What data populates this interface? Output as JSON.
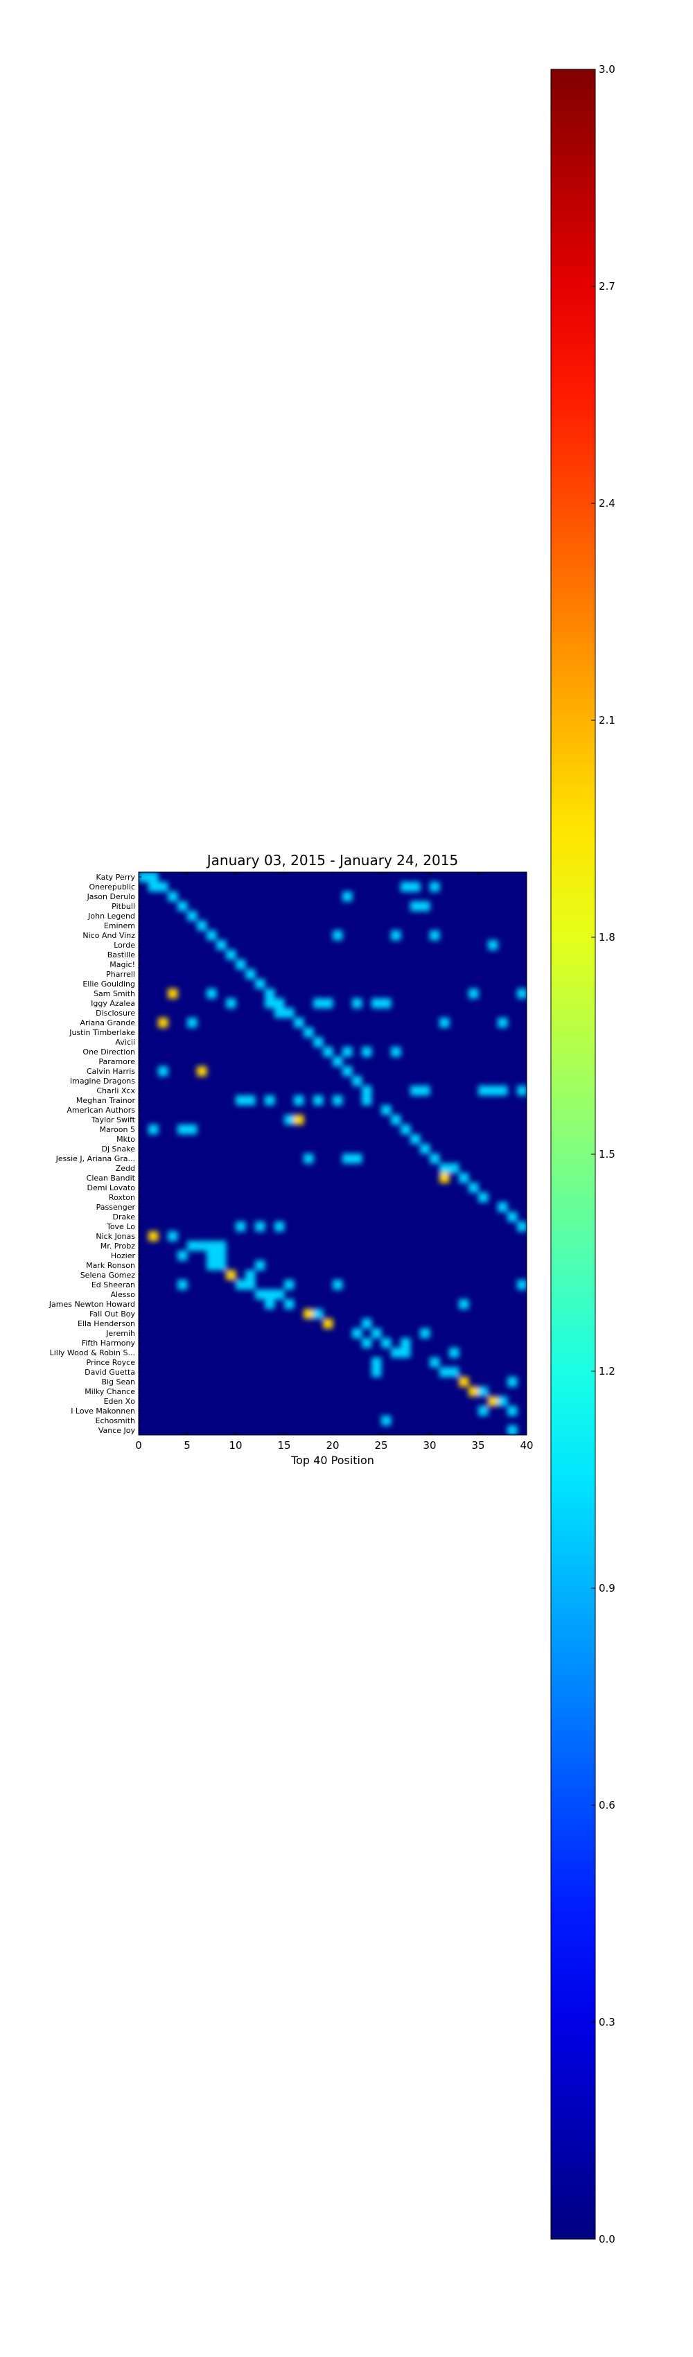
{
  "chart_data": {
    "type": "heatmap",
    "title": "January 03, 2015 - January 24, 2015",
    "xlabel": "Top 40 Position",
    "ylabel": "",
    "xlim": [
      0,
      40
    ],
    "xticks": [
      "0",
      "5",
      "10",
      "15",
      "20",
      "25",
      "30",
      "35",
      "40"
    ],
    "artists": [
      "Katy Perry",
      "Onerepublic",
      "Jason Derulo",
      "Pitbull",
      "John Legend",
      "Eminem",
      "Nico And Vinz",
      "Lorde",
      "Bastille",
      "Magic!",
      "Pharrell",
      "Ellie Goulding",
      "Sam Smith",
      "Iggy Azalea",
      "Disclosure",
      "Ariana Grande",
      "Justin Timberlake",
      "Avicii",
      "One Direction",
      "Paramore",
      "Calvin Harris",
      "Imagine Dragons",
      "Charli Xcx",
      "Meghan Trainor",
      "American Authors",
      "Taylor Swift",
      "Maroon 5",
      "Mkto",
      "Dj Snake",
      "Jessie J, Ariana Gra...",
      "Zedd",
      "Clean Bandit",
      "Demi Lovato",
      "Roxton",
      "Passenger",
      "Drake",
      "Tove Lo",
      "Nick Jonas",
      "Mr. Probz",
      "Hozier",
      "Mark Ronson",
      "Selena Gomez",
      "Ed Sheeran",
      "Alesso",
      "James Newton Howard",
      "Fall Out Boy",
      "Ella Henderson",
      "Jeremih",
      "Fifth Harmony",
      "Lilly Wood & Robin S...",
      "Prince Royce",
      "David Guetta",
      "Big Sean",
      "Milky Chance",
      "Eden Xo",
      "I Love Makonnen",
      "Echosmith",
      "Vance Joy"
    ],
    "value_range": [
      0,
      3.0
    ],
    "colormap": "jet",
    "colorbar_ticks": [
      "0.0",
      "0.3",
      "0.6",
      "0.9",
      "1.2",
      "1.5",
      "1.8",
      "2.1",
      "2.4",
      "2.7",
      "3.0"
    ],
    "background_value": 0,
    "cells": [
      [
        0,
        0,
        1
      ],
      [
        0,
        1,
        1
      ],
      [
        1,
        1,
        1
      ],
      [
        1,
        2,
        1
      ],
      [
        1,
        27,
        1
      ],
      [
        1,
        28,
        1
      ],
      [
        1,
        30,
        1
      ],
      [
        2,
        3,
        1
      ],
      [
        2,
        21,
        1
      ],
      [
        3,
        4,
        1
      ],
      [
        3,
        28,
        1
      ],
      [
        3,
        29,
        1
      ],
      [
        4,
        5,
        1
      ],
      [
        5,
        6,
        1
      ],
      [
        6,
        7,
        1
      ],
      [
        6,
        20,
        1
      ],
      [
        6,
        26,
        1
      ],
      [
        6,
        30,
        1
      ],
      [
        7,
        8,
        1
      ],
      [
        7,
        36,
        1
      ],
      [
        8,
        9,
        1
      ],
      [
        9,
        10,
        1
      ],
      [
        10,
        11,
        1
      ],
      [
        11,
        12,
        1
      ],
      [
        12,
        3,
        2
      ],
      [
        12,
        7,
        1
      ],
      [
        12,
        13,
        1
      ],
      [
        12,
        34,
        1
      ],
      [
        12,
        39,
        1
      ],
      [
        13,
        9,
        1
      ],
      [
        13,
        13,
        1
      ],
      [
        13,
        14,
        1
      ],
      [
        13,
        18,
        1
      ],
      [
        13,
        19,
        1
      ],
      [
        13,
        22,
        1
      ],
      [
        13,
        24,
        1
      ],
      [
        13,
        25,
        1
      ],
      [
        14,
        14,
        1
      ],
      [
        14,
        15,
        1
      ],
      [
        15,
        2,
        2
      ],
      [
        15,
        5,
        1
      ],
      [
        15,
        16,
        1
      ],
      [
        15,
        31,
        1
      ],
      [
        15,
        37,
        1
      ],
      [
        16,
        17,
        1
      ],
      [
        17,
        18,
        1
      ],
      [
        18,
        19,
        1
      ],
      [
        18,
        21,
        1
      ],
      [
        18,
        23,
        1
      ],
      [
        18,
        26,
        1
      ],
      [
        19,
        20,
        1
      ],
      [
        20,
        2,
        1
      ],
      [
        20,
        6,
        2
      ],
      [
        20,
        21,
        1
      ],
      [
        21,
        22,
        1
      ],
      [
        22,
        23,
        1
      ],
      [
        22,
        28,
        1
      ],
      [
        22,
        29,
        1
      ],
      [
        22,
        35,
        1
      ],
      [
        22,
        36,
        1
      ],
      [
        22,
        37,
        1
      ],
      [
        22,
        39,
        1
      ],
      [
        23,
        10,
        1
      ],
      [
        23,
        11,
        1
      ],
      [
        23,
        13,
        1
      ],
      [
        23,
        16,
        1
      ],
      [
        23,
        18,
        1
      ],
      [
        23,
        20,
        1
      ],
      [
        23,
        23,
        1
      ],
      [
        24,
        25,
        1
      ],
      [
        25,
        15,
        1
      ],
      [
        25,
        16,
        2
      ],
      [
        25,
        26,
        1
      ],
      [
        26,
        1,
        1
      ],
      [
        26,
        4,
        1
      ],
      [
        26,
        5,
        1
      ],
      [
        26,
        27,
        1
      ],
      [
        27,
        28,
        1
      ],
      [
        28,
        29,
        1
      ],
      [
        29,
        17,
        1
      ],
      [
        29,
        21,
        1
      ],
      [
        29,
        22,
        1
      ],
      [
        29,
        30,
        1
      ],
      [
        30,
        31,
        1
      ],
      [
        30,
        32,
        1
      ],
      [
        31,
        31,
        2
      ],
      [
        31,
        33,
        1
      ],
      [
        32,
        34,
        1
      ],
      [
        33,
        35,
        1
      ],
      [
        34,
        37,
        1
      ],
      [
        35,
        38,
        1
      ],
      [
        36,
        10,
        1
      ],
      [
        36,
        12,
        1
      ],
      [
        36,
        14,
        1
      ],
      [
        36,
        39,
        1
      ],
      [
        37,
        1,
        2
      ],
      [
        37,
        3,
        1
      ],
      [
        38,
        5,
        1
      ],
      [
        38,
        6,
        1
      ],
      [
        38,
        7,
        1
      ],
      [
        38,
        8,
        1
      ],
      [
        39,
        4,
        1
      ],
      [
        39,
        7,
        1
      ],
      [
        39,
        8,
        1
      ],
      [
        40,
        7,
        1
      ],
      [
        40,
        8,
        1
      ],
      [
        40,
        12,
        1
      ],
      [
        41,
        9,
        2
      ],
      [
        41,
        11,
        1
      ],
      [
        42,
        4,
        1
      ],
      [
        42,
        10,
        1
      ],
      [
        42,
        11,
        1
      ],
      [
        42,
        15,
        1
      ],
      [
        42,
        20,
        1
      ],
      [
        42,
        39,
        1
      ],
      [
        43,
        12,
        1
      ],
      [
        43,
        13,
        1
      ],
      [
        43,
        14,
        1
      ],
      [
        44,
        13,
        1
      ],
      [
        44,
        15,
        1
      ],
      [
        44,
        33,
        1
      ],
      [
        45,
        17,
        2
      ],
      [
        45,
        18,
        1
      ],
      [
        46,
        19,
        2
      ],
      [
        46,
        23,
        1
      ],
      [
        47,
        22,
        1
      ],
      [
        47,
        24,
        1
      ],
      [
        47,
        29,
        1
      ],
      [
        48,
        23,
        1
      ],
      [
        48,
        25,
        1
      ],
      [
        48,
        27,
        1
      ],
      [
        49,
        26,
        1
      ],
      [
        49,
        27,
        1
      ],
      [
        49,
        32,
        1
      ],
      [
        50,
        24,
        1
      ],
      [
        50,
        30,
        1
      ],
      [
        51,
        24,
        1
      ],
      [
        51,
        31,
        1
      ],
      [
        51,
        32,
        1
      ],
      [
        52,
        33,
        2
      ],
      [
        52,
        38,
        1
      ],
      [
        53,
        34,
        2
      ],
      [
        53,
        35,
        1
      ],
      [
        54,
        36,
        2
      ],
      [
        54,
        37,
        1
      ],
      [
        55,
        35,
        1
      ],
      [
        55,
        38,
        1
      ],
      [
        56,
        25,
        1
      ],
      [
        57,
        38,
        1
      ]
    ]
  }
}
